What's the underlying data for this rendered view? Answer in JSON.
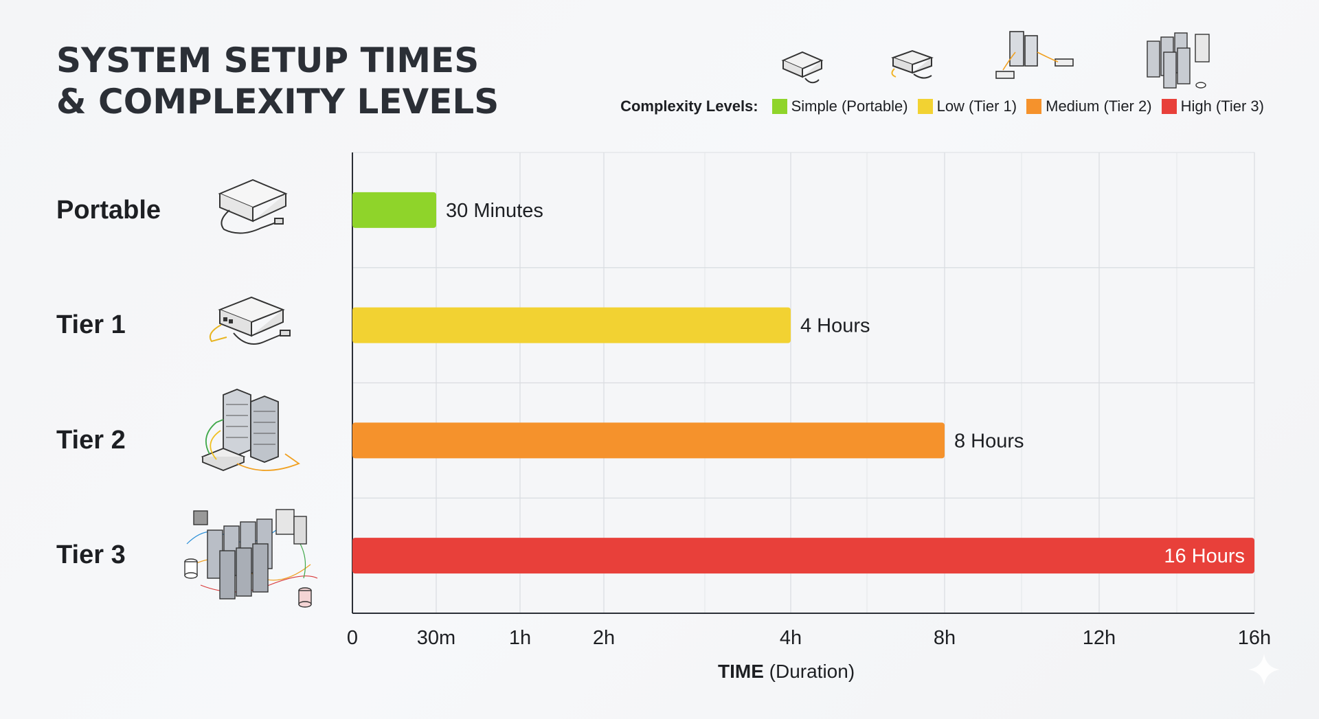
{
  "title_line1": "SYSTEM SETUP TIMES",
  "title_line2": "& COMPLEXITY LEVELS",
  "legend": {
    "label": "Complexity Levels:",
    "items": [
      {
        "label": "Simple (Portable)",
        "color": "#8fd42a"
      },
      {
        "label": "Low (Tier 1)",
        "color": "#f2d232"
      },
      {
        "label": "Medium (Tier 2)",
        "color": "#f5922c"
      },
      {
        "label": "High (Tier 3)",
        "color": "#e8403a"
      }
    ]
  },
  "chart_data": {
    "type": "bar",
    "orientation": "horizontal",
    "categories": [
      "Portable",
      "Tier 1",
      "Tier 2",
      "Tier 3"
    ],
    "values_hours": [
      0.5,
      4,
      8,
      16
    ],
    "data_labels": [
      "30 Minutes",
      "4 Hours",
      "8 Hours",
      "16 Hours"
    ],
    "colors": [
      "#8fd42a",
      "#f2d232",
      "#f5922c",
      "#e8403a"
    ],
    "x_ticks": [
      {
        "label": "0",
        "hours": 0
      },
      {
        "label": "30m",
        "hours": 0.5
      },
      {
        "label": "1h",
        "hours": 1
      },
      {
        "label": "2h",
        "hours": 2
      },
      {
        "label": "4h",
        "hours": 4
      },
      {
        "label": "8h",
        "hours": 8
      },
      {
        "label": "12h",
        "hours": 12
      },
      {
        "label": "16h",
        "hours": 16
      }
    ],
    "xlabel_bold": "TIME",
    "xlabel_rest": "(Duration)",
    "xlim": [
      0,
      16
    ],
    "grid": true
  },
  "icons": [
    "portable-device-icon",
    "tier1-server-icon",
    "tier2-server-rack-icon",
    "tier3-datacenter-icon"
  ]
}
